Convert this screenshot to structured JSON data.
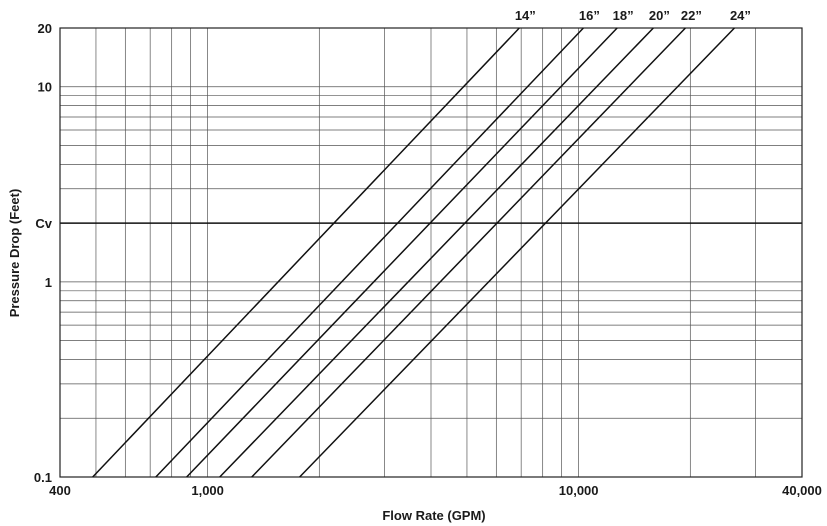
{
  "chart_data": {
    "type": "line",
    "title": "",
    "xlabel": "Flow Rate (GPM)",
    "ylabel": "Pressure Drop (Feet)",
    "x_scale": "log",
    "y_scale": "log",
    "xlim": [
      400,
      40000
    ],
    "ylim": [
      0.1,
      20
    ],
    "x_ticks": [
      {
        "value": 400,
        "label": "400"
      },
      {
        "value": 1000,
        "label": "1,000"
      },
      {
        "value": 10000,
        "label": "10,000"
      },
      {
        "value": 40000,
        "label": "40,000"
      }
    ],
    "y_ticks": [
      {
        "value": 0.1,
        "label": "0.1"
      },
      {
        "value": 1,
        "label": "1"
      },
      {
        "value": 2,
        "label": "Cv"
      },
      {
        "value": 10,
        "label": "10"
      },
      {
        "value": 20,
        "label": "20"
      }
    ],
    "x_grid": [
      500,
      600,
      700,
      800,
      900,
      1000,
      2000,
      3000,
      4000,
      5000,
      6000,
      7000,
      8000,
      9000,
      10000,
      20000,
      30000
    ],
    "y_grid": [
      0.2,
      0.3,
      0.4,
      0.5,
      0.6,
      0.7,
      0.8,
      0.9,
      1,
      2,
      3,
      4,
      5,
      6,
      7,
      8,
      9,
      10
    ],
    "reference_line": {
      "label": "Cv",
      "y": 2
    },
    "grid": true,
    "series": [
      {
        "name": "14”",
        "points": [
          [
            490,
            0.1
          ],
          [
            6920,
            20
          ]
        ]
      },
      {
        "name": "16”",
        "points": [
          [
            725,
            0.1
          ],
          [
            10300,
            20
          ]
        ]
      },
      {
        "name": "18”",
        "points": [
          [
            878,
            0.1
          ],
          [
            12700,
            20
          ]
        ]
      },
      {
        "name": "20”",
        "points": [
          [
            1078,
            0.1
          ],
          [
            15900,
            20
          ]
        ]
      },
      {
        "name": "22”",
        "points": [
          [
            1315,
            0.1
          ],
          [
            19400,
            20
          ]
        ]
      },
      {
        "name": "24”",
        "points": [
          [
            1770,
            0.1
          ],
          [
            26300,
            20
          ]
        ]
      }
    ]
  }
}
